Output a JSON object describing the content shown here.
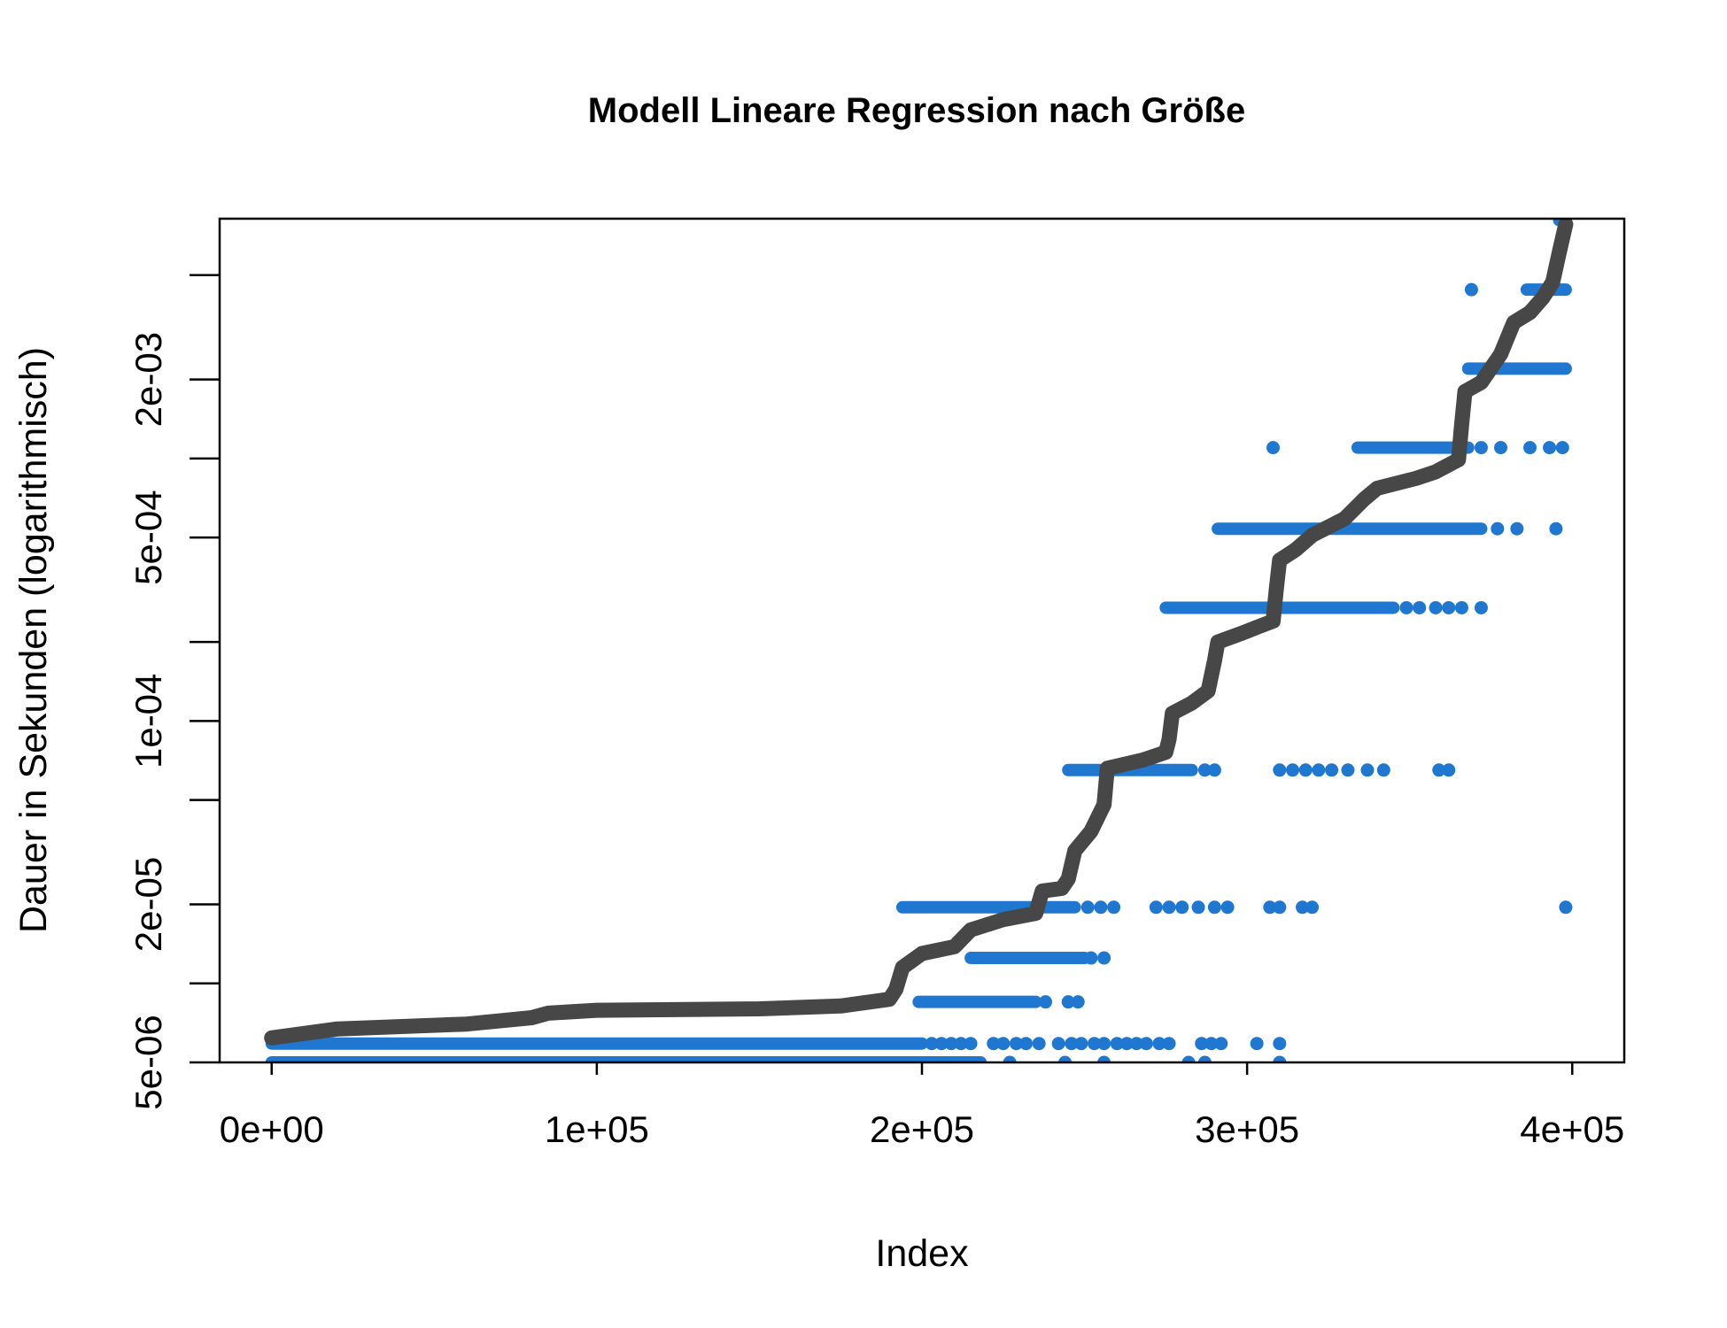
{
  "chart_data": {
    "type": "scatter",
    "title": "Modell  Lineare Regression nach Größe",
    "xlabel": "Index",
    "ylabel": "Dauer in Sekunden (logarithmisch)",
    "xlim": [
      -16000,
      416000
    ],
    "ylim": [
      5e-06,
      0.0082
    ],
    "y_scale": "log",
    "grid": false,
    "x_ticks": [
      {
        "value": 0,
        "label": "0e+00"
      },
      {
        "value": 100000,
        "label": "1e+05"
      },
      {
        "value": 200000,
        "label": "2e+05"
      },
      {
        "value": 300000,
        "label": "3e+05"
      },
      {
        "value": 400000,
        "label": "4e+05"
      }
    ],
    "y_ticks": [
      {
        "value": 5e-06,
        "label": "5e-06"
      },
      {
        "value": 1e-05,
        "label": ""
      },
      {
        "value": 2e-05,
        "label": "2e-05"
      },
      {
        "value": 5e-05,
        "label": ""
      },
      {
        "value": 0.0001,
        "label": "1e-04"
      },
      {
        "value": 0.0002,
        "label": ""
      },
      {
        "value": 0.0005,
        "label": "5e-04"
      },
      {
        "value": 0.001,
        "label": ""
      },
      {
        "value": 0.002,
        "label": "2e-03"
      },
      {
        "value": 0.005,
        "label": ""
      }
    ],
    "colors": {
      "fitted": "#474747",
      "observed": "#1f77d0"
    },
    "series": [
      {
        "kind": "line",
        "color": "#474747",
        "points": [
          [
            0,
            6.2e-06
          ],
          [
            20000,
            6.7e-06
          ],
          [
            60000,
            7e-06
          ],
          [
            80000,
            7.4e-06
          ],
          [
            85000,
            7.7e-06
          ],
          [
            100000,
            7.9e-06
          ],
          [
            150000,
            8e-06
          ],
          [
            175000,
            8.2e-06
          ],
          [
            190000,
            8.7e-06
          ],
          [
            192000,
            9.5e-06
          ],
          [
            194000,
            1.15e-05
          ],
          [
            200000,
            1.3e-05
          ],
          [
            210000,
            1.38e-05
          ],
          [
            215000,
            1.6e-05
          ],
          [
            225000,
            1.75e-05
          ],
          [
            235000,
            1.85e-05
          ],
          [
            237000,
            2.25e-05
          ],
          [
            243000,
            2.3e-05
          ],
          [
            245000,
            2.5e-05
          ],
          [
            247000,
            3.2e-05
          ],
          [
            252000,
            3.8e-05
          ],
          [
            256000,
            4.8e-05
          ],
          [
            257000,
            6.6e-05
          ],
          [
            268000,
            7.1e-05
          ],
          [
            275000,
            7.6e-05
          ],
          [
            276000,
            8.5e-05
          ],
          [
            277000,
            0.000107
          ],
          [
            283000,
            0.000117
          ],
          [
            288000,
            0.00013
          ],
          [
            290000,
            0.00017
          ],
          [
            291000,
            0.0002
          ],
          [
            298000,
            0.000215
          ],
          [
            304000,
            0.00023
          ],
          [
            308000,
            0.00024
          ],
          [
            309000,
            0.00032
          ],
          [
            310000,
            0.00041
          ],
          [
            315000,
            0.00045
          ],
          [
            320000,
            0.00051
          ],
          [
            330000,
            0.00059
          ],
          [
            336000,
            0.0007
          ],
          [
            340000,
            0.00077
          ],
          [
            352000,
            0.00084
          ],
          [
            358000,
            0.00089
          ],
          [
            365000,
            0.00099
          ],
          [
            366000,
            0.00135
          ],
          [
            367000,
            0.0018
          ],
          [
            372000,
            0.00195
          ],
          [
            378000,
            0.0025
          ],
          [
            382000,
            0.0033
          ],
          [
            387000,
            0.0036
          ],
          [
            391000,
            0.0041
          ],
          [
            394000,
            0.0047
          ],
          [
            396000,
            0.0061
          ],
          [
            398000,
            0.0078
          ]
        ]
      },
      {
        "kind": "points",
        "color": "#1f77d0",
        "bands": [
          {
            "y": 5e-06,
            "x_from": 0,
            "x_to": 218000,
            "isolated": [
              227000,
              244000,
              256000,
              282000,
              287000,
              310000
            ]
          },
          {
            "y": 5.9e-06,
            "x_from": 0,
            "x_to": 200000,
            "isolated": [
              203000,
              206000,
              209000,
              212000,
              215000,
              222000,
              225000,
              229000,
              232000,
              236000,
              242000,
              246000,
              249000,
              253000,
              256000,
              260000,
              263000,
              266000,
              269000,
              273000,
              276000,
              286000,
              289000,
              292000,
              303000,
              310000
            ]
          },
          {
            "y": 8.5e-06,
            "x_from": 199000,
            "x_to": 235000,
            "isolated": [
              238000,
              245000,
              248000
            ]
          },
          {
            "y": 1.25e-05,
            "x_from": 215000,
            "x_to": 250000,
            "isolated": [
              252000,
              256000
            ]
          },
          {
            "y": 1.95e-05,
            "x_from": 194000,
            "x_to": 247000,
            "isolated": [
              251000,
              255000,
              259000,
              272000,
              276000,
              280000,
              285000,
              290000,
              294000,
              307000,
              310000,
              317000,
              320000,
              398000
            ]
          },
          {
            "y": 6.5e-05,
            "x_from": 245000,
            "x_to": 283000,
            "isolated": [
              287000,
              290000,
              310000,
              314000,
              318000,
              322000,
              326000,
              331000,
              337000,
              342000,
              359000,
              362000
            ]
          },
          {
            "y": 0.00027,
            "x_from": 275000,
            "x_to": 345000,
            "isolated": [
              349000,
              353000,
              358000,
              362000,
              366000,
              372000
            ]
          },
          {
            "y": 0.00054,
            "x_from": 291000,
            "x_to": 372000,
            "isolated": [
              377000,
              383000,
              395000
            ]
          },
          {
            "y": 0.0011,
            "x_from": 334000,
            "x_to": 368000,
            "isolated": [
              308000,
              372000,
              378000,
              387000,
              393000,
              397000
            ]
          },
          {
            "y": 0.0022,
            "x_from": 368000,
            "x_to": 398000,
            "isolated": []
          },
          {
            "y": 0.0044,
            "x_from": 386000,
            "x_to": 398000,
            "isolated": [
              369000
            ]
          },
          {
            "y": 0.0081,
            "x_from": 396000,
            "x_to": 398000,
            "isolated": []
          }
        ]
      }
    ]
  }
}
